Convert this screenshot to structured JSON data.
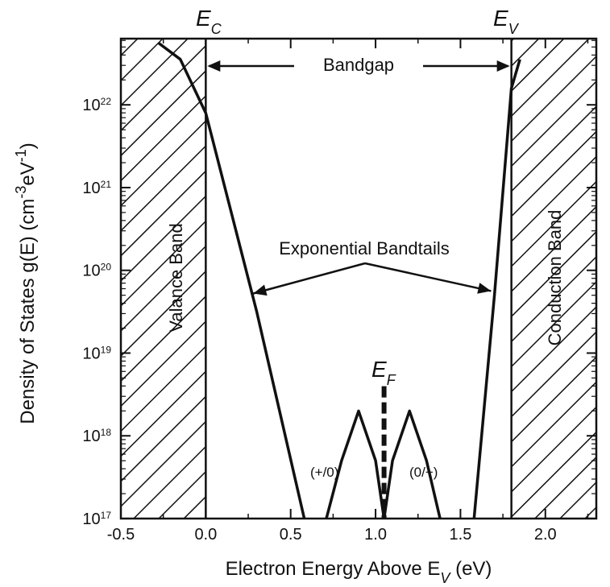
{
  "chart_data": {
    "type": "line",
    "xlabel": "Electron Energy Above E",
    "xlabel_sub": "V",
    "xlabel_unit": " (eV)",
    "ylabel": "Density of States g(E) (cm",
    "ylabel_sup1": "-3",
    "ylabel_mid": "eV",
    "ylabel_sup2": "-1",
    "ylabel_end": ")",
    "xlim": [
      -0.5,
      2.3
    ],
    "ylim_log10": [
      17,
      22.8
    ],
    "y_scale": "log",
    "x_ticks": [
      {
        "value": -0.5,
        "label": "-0.5"
      },
      {
        "value": 0.0,
        "label": "0.0"
      },
      {
        "value": 0.5,
        "label": "0.5"
      },
      {
        "value": 1.0,
        "label": "1.0"
      },
      {
        "value": 1.5,
        "label": "1.5"
      },
      {
        "value": 2.0,
        "label": "2.0"
      }
    ],
    "y_ticks": [
      {
        "exp": 17,
        "base": "10",
        "power": "17"
      },
      {
        "exp": 18,
        "base": "10",
        "power": "18"
      },
      {
        "exp": 19,
        "base": "10",
        "power": "19"
      },
      {
        "exp": 20,
        "base": "10",
        "power": "20"
      },
      {
        "exp": 21,
        "base": "10",
        "power": "21"
      },
      {
        "exp": 22,
        "base": "10",
        "power": "22"
      }
    ],
    "band_edges": {
      "valence_edge_x": 0.0,
      "conduction_edge_x": 1.8,
      "left_label": "E",
      "left_label_sub": "C",
      "right_label": "E",
      "right_label_sub": "V"
    },
    "regions": [
      {
        "name": "Valance Band",
        "x_from": -0.5,
        "x_to": 0.0,
        "pattern": "hatched"
      },
      {
        "name": "Conduction Band",
        "x_from": 1.8,
        "x_to": 2.3,
        "pattern": "hatched"
      }
    ],
    "series": [
      {
        "points": [
          [
            -0.28,
            22.75
          ],
          [
            -0.15,
            22.55
          ],
          [
            0.0,
            21.9
          ],
          [
            0.3,
            19.5
          ],
          [
            0.58,
            17.0
          ]
        ],
        "style": "solid"
      },
      {
        "points": [
          [
            1.58,
            17.0
          ],
          [
            1.7,
            19.7
          ],
          [
            1.8,
            22.2
          ],
          [
            1.85,
            22.55
          ]
        ],
        "style": "solid"
      },
      {
        "points": [
          [
            0.71,
            17.0
          ],
          [
            0.8,
            17.7
          ],
          [
            0.9,
            18.3
          ],
          [
            1.0,
            17.7
          ],
          [
            1.05,
            17.0
          ]
        ],
        "style": "solid"
      },
      {
        "points": [
          [
            1.05,
            17.0
          ],
          [
            1.1,
            17.7
          ],
          [
            1.2,
            18.3
          ],
          [
            1.3,
            17.7
          ],
          [
            1.38,
            17.0
          ]
        ],
        "style": "solid"
      }
    ],
    "fermi_level": {
      "x": 1.05,
      "y_top": 18.6,
      "label": "E",
      "label_sub": "F"
    },
    "annotations": {
      "bandgap": "Bandgap",
      "bandtails": "Exponential Bandtails",
      "donor": "(+/0)",
      "acceptor": "(0/−)"
    },
    "colors": {
      "line": "#111111",
      "background": "#ffffff"
    }
  }
}
